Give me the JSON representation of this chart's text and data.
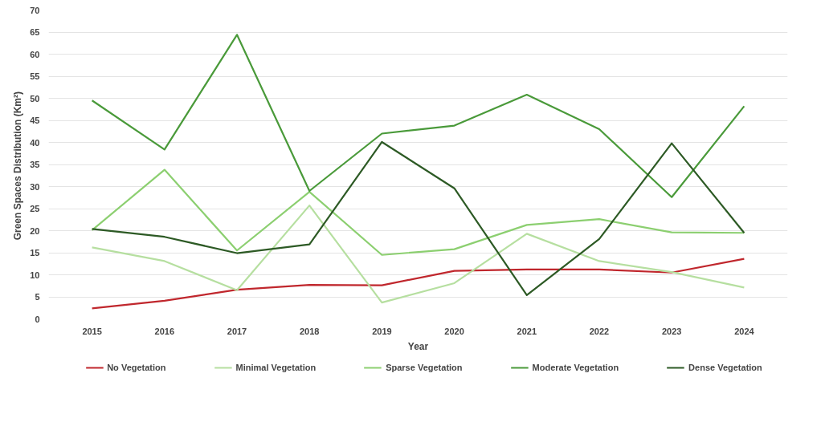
{
  "chart_data": {
    "type": "line",
    "xlabel": "Year",
    "ylabel": "Green Spaces Distribution  (Km²)",
    "categories": [
      "2015",
      "2016",
      "2017",
      "2018",
      "2019",
      "2020",
      "2021",
      "2022",
      "2023",
      "2024"
    ],
    "ylim": [
      0,
      70
    ],
    "yticks": [
      0,
      5,
      10,
      15,
      20,
      25,
      30,
      35,
      40,
      45,
      50,
      55,
      60,
      65,
      70
    ],
    "grid": "y",
    "legend": "bottom",
    "marker": "none",
    "line_style": "solid",
    "series": [
      {
        "name": "No Vegetation",
        "color": "#c0272d",
        "values": [
          2.4,
          4.1,
          6.6,
          7.7,
          7.6,
          10.9,
          11.2,
          11.2,
          10.5,
          13.6
        ]
      },
      {
        "name": "Minimal Vegetation",
        "color": "#b6dfa0",
        "values": [
          16.2,
          13.1,
          6.5,
          25.7,
          3.7,
          8.1,
          19.3,
          13.1,
          10.6,
          7.1
        ]
      },
      {
        "name": "Sparse Vegetation",
        "color": "#8ccf70",
        "values": [
          20.1,
          33.8,
          15.5,
          28.8,
          14.5,
          15.8,
          21.3,
          22.6,
          19.6,
          19.5
        ]
      },
      {
        "name": "Moderate Vegetation",
        "color": "#4a9a3a",
        "values": [
          49.5,
          38.4,
          64.4,
          29.0,
          42.0,
          43.8,
          50.8,
          43.0,
          27.6,
          48.2
        ]
      },
      {
        "name": "Dense Vegetation",
        "color": "#2d5a25",
        "values": [
          20.4,
          18.6,
          14.9,
          16.9,
          40.1,
          29.6,
          5.4,
          18.1,
          39.8,
          19.5
        ]
      }
    ]
  }
}
